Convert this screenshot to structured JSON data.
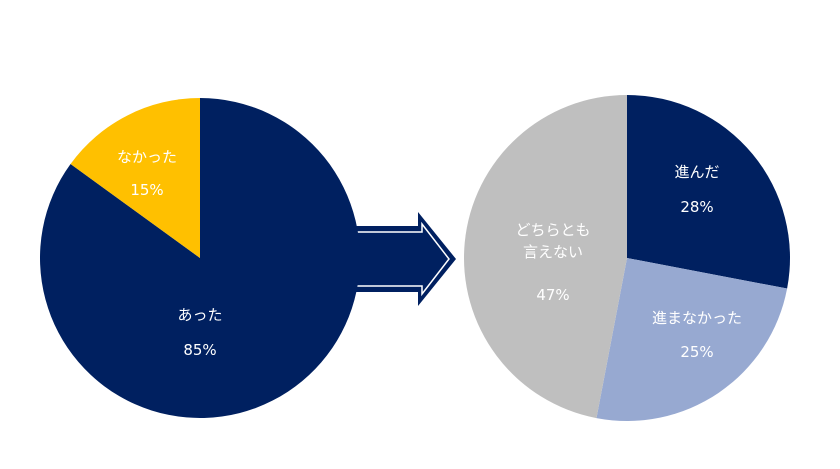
{
  "chart_data": [
    {
      "type": "pie",
      "categories": [
        "あった",
        "なかった"
      ],
      "values": [
        85,
        15
      ],
      "value_labels": [
        "85%",
        "15%"
      ],
      "colors": [
        "#002060",
        "#ffc000"
      ]
    },
    {
      "type": "pie",
      "categories": [
        "進んだ",
        "進まなかった",
        "どちらとも\n言えない"
      ],
      "values": [
        28,
        25,
        47
      ],
      "value_labels": [
        "28%",
        "25%",
        "47%"
      ],
      "colors": [
        "#002060",
        "#97a9d1",
        "#bfbfbf"
      ]
    }
  ]
}
